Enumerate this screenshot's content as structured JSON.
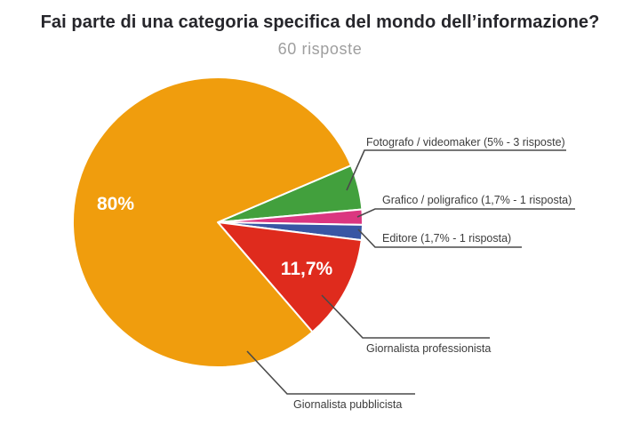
{
  "chart_data": {
    "type": "pie",
    "title": "Fai parte di una categoria specifica del mondo dell’informazione?",
    "subtitle": "60 risposte",
    "total_responses_text": "60 risposte",
    "legend_position": "none",
    "label_style": "callout",
    "rotation_deg": 23.1,
    "slices": [
      {
        "label": "Fotografo / videomaker",
        "percent": 5,
        "count": 3,
        "color": "#42A03D",
        "callout": "Fotografo / videomaker (5% - 3 risposte)"
      },
      {
        "label": "Grafico / poligrafico",
        "percent": 1.7,
        "count": 1,
        "color": "#DB3680",
        "callout": "Grafico / poligrafico (1,7% - 1 risposta)"
      },
      {
        "label": "Editore",
        "percent": 1.7,
        "count": 1,
        "color": "#3856A4",
        "callout": "Editore (1,7% - 1 risposta)"
      },
      {
        "label": "Giornalista professionista",
        "percent": 11.7,
        "color": "#DF2B1D",
        "callout": "Giornalista professionista",
        "slice_label": "11,7%"
      },
      {
        "label": "Giornalista pubblicista",
        "percent": 80,
        "color": "#F09D0D",
        "callout": "Giornalista pubblicista",
        "slice_label": "80%"
      }
    ]
  }
}
